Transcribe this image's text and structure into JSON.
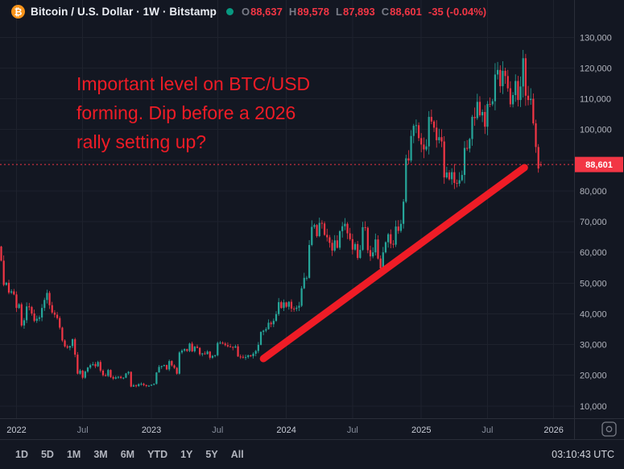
{
  "header": {
    "symbol_icon_glyph": "₿",
    "symbol_title": "Bitcoin / U.S. Dollar · 1W · Bitstamp",
    "ohlc": {
      "o_label": "O",
      "o": "88,637",
      "h_label": "H",
      "h": "89,578",
      "l_label": "L",
      "l": "87,893",
      "c_label": "C",
      "c": "88,601",
      "change": "-35 (-0.04%)"
    }
  },
  "annotation": {
    "lines": [
      "Important level on BTC/USD",
      "forming. Dip before a 2026",
      "rally setting up?"
    ]
  },
  "price_scale": {
    "last_price_label": "88,601"
  },
  "toolbar": {
    "ranges": [
      "1D",
      "5D",
      "1M",
      "3M",
      "6M",
      "YTD",
      "1Y",
      "5Y",
      "All"
    ],
    "clock": "03:10:43 UTC"
  },
  "colors": {
    "background": "#131722",
    "grid": "#1e222d",
    "border": "#2a2e39",
    "up": "#26a69a",
    "down": "#f23645",
    "annotation": "#ef1c26",
    "axis_text": "#b2b5be",
    "brand_orange": "#f7931a",
    "status_teal": "#089981"
  },
  "chart_data": {
    "type": "candlestick",
    "title": "Bitcoin / U.S. Dollar",
    "interval": "1W",
    "exchange": "Bitstamp",
    "ylim": [
      6000,
      133500
    ],
    "y_ticks": [
      10000,
      20000,
      30000,
      40000,
      50000,
      60000,
      70000,
      80000,
      90000,
      100000,
      110000,
      120000,
      130000
    ],
    "x_ticks": [
      {
        "label": "2022",
        "week": 6,
        "major": true
      },
      {
        "label": "Jul",
        "week": 32,
        "major": false
      },
      {
        "label": "2023",
        "week": 59,
        "major": true
      },
      {
        "label": "Jul",
        "week": 85,
        "major": false
      },
      {
        "label": "2024",
        "week": 112,
        "major": true
      },
      {
        "label": "Jul",
        "week": 138,
        "major": false
      },
      {
        "label": "2025",
        "week": 165,
        "major": true
      },
      {
        "label": "Jul",
        "week": 191,
        "major": false
      },
      {
        "label": "2026",
        "week": 217,
        "major": true
      }
    ],
    "weekly_closes": [
      57300,
      49400,
      50100,
      46900,
      47300,
      46300,
      41900,
      43100,
      36200,
      37900,
      42400,
      42200,
      40100,
      37700,
      38400,
      38800,
      41900,
      44500,
      46800,
      42800,
      40400,
      39700,
      38600,
      35500,
      31300,
      29400,
      29000,
      29500,
      31700,
      26700,
      20500,
      21500,
      19200,
      21200,
      22500,
      23300,
      23600,
      22900,
      24300,
      21500,
      20000,
      19800,
      21700,
      19400,
      18900,
      19300,
      19500,
      19100,
      19200,
      20600,
      21100,
      16300,
      16700,
      16500,
      17100,
      17200,
      16800,
      16500,
      16600,
      16900,
      17200,
      20900,
      22700,
      23000,
      23300,
      21900,
      24600,
      23200,
      22400,
      20500,
      27400,
      28000,
      28500,
      27900,
      30300,
      27800,
      29300,
      28900,
      26800,
      27100,
      26900,
      27700,
      25700,
      26300,
      26500,
      30500,
      30600,
      30300,
      29800,
      29400,
      29200,
      29000,
      29400,
      26100,
      26000,
      25800,
      25900,
      26500,
      26200,
      27000,
      27900,
      29900,
      34100,
      34500,
      35000,
      37100,
      36600,
      37700,
      39900,
      43800,
      41900,
      43700,
      42300,
      43900,
      41700,
      41600,
      42000,
      42600,
      48300,
      51700,
      51700,
      62400,
      68300,
      68900,
      65300,
      69600,
      69400,
      65700,
      64900,
      63100,
      60600,
      63900,
      61500,
      66900,
      68500,
      69300,
      66200,
      64300,
      60900,
      62700,
      58200,
      60800,
      68200,
      68000,
      60700,
      58700,
      60000,
      64200,
      58000,
      54800,
      60000,
      63300,
      65900,
      62800,
      62500,
      68400,
      67000,
      69300,
      76500,
      90600,
      89900,
      97900,
      101200,
      101400,
      97200,
      95100,
      93500,
      94500,
      104100,
      102600,
      100600,
      96500,
      97500,
      96100,
      84400,
      86000,
      83800,
      86100,
      82600,
      82400,
      83500,
      85200,
      94000,
      93800,
      96900,
      104100,
      103700,
      109000,
      104600,
      105700,
      100900,
      108300,
      108200,
      109200,
      117900,
      119400,
      114100,
      119100,
      117400,
      113400,
      108200,
      111200,
      115800,
      109600,
      114000,
      123200,
      111000,
      109600,
      110000,
      102000,
      94300,
      87300,
      88601
    ],
    "last": {
      "open": 88637,
      "high": 89578,
      "low": 87893,
      "close": 88601,
      "change": -35,
      "change_pct": -0.04
    },
    "price_line": 88601,
    "trendline": {
      "from_week": 103,
      "from_price": 25400,
      "to_week": 205.5,
      "to_price": 87600
    }
  }
}
